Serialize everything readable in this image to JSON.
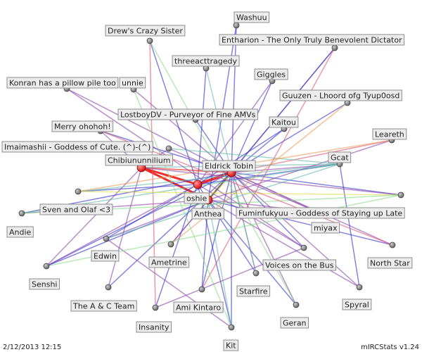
{
  "timestamp": "2/12/2013 12:15",
  "credit": "mIRCStats v1.24",
  "colors": {
    "node": "#666666",
    "hub": "#dd1111",
    "label_bg": "#ececec",
    "label_border": "#8c8c8c",
    "blue": "#3333cc",
    "purple": "#8844aa",
    "pink": "#dd5577",
    "green": "#88dd88",
    "teal": "#66bbaa",
    "orange": "#ee9955",
    "yellow": "#dddd55",
    "red": "#ee2222"
  },
  "nodes": [
    {
      "id": "washuu",
      "label": "Washuu"
    },
    {
      "id": "drew",
      "label": "Drew's Crazy Sister"
    },
    {
      "id": "entharion",
      "label": "Entharion - The Only Truly Benevolent Dictator"
    },
    {
      "id": "threeact",
      "label": "threeacttragedy"
    },
    {
      "id": "giggles",
      "label": "Giggles"
    },
    {
      "id": "konran",
      "label": "Konran has a pillow pile too"
    },
    {
      "id": "unnie",
      "label": "unnie"
    },
    {
      "id": "guuzen",
      "label": "Guuzen - Lhoord ofg Tyup0osd"
    },
    {
      "id": "lostboy",
      "label": "LostboyDV - Purveyor of Fine AMVs"
    },
    {
      "id": "kaitou",
      "label": "Kaitou"
    },
    {
      "id": "merry",
      "label": "Merry ohohoh!"
    },
    {
      "id": "leareth",
      "label": "Leareth"
    },
    {
      "id": "imaimashii",
      "label": "Imaimashii - Goddess of Cute. (^)-(^)"
    },
    {
      "id": "chibi",
      "label": "Chibiununnilium"
    },
    {
      "id": "gcat",
      "label": "Gcat"
    },
    {
      "id": "eldrick",
      "label": "Eldrick Tobin"
    },
    {
      "id": "oshie",
      "label": "oshie"
    },
    {
      "id": "anthea",
      "label": "Anthea"
    },
    {
      "id": "sven",
      "label": "Sven and Olaf <3"
    },
    {
      "id": "fuminfukyuu",
      "label": "Fuminfukyuu - Goddess of Staying up Late"
    },
    {
      "id": "andie",
      "label": "Andie"
    },
    {
      "id": "miyax",
      "label": "miyax"
    },
    {
      "id": "edwin",
      "label": "Edwin"
    },
    {
      "id": "northstar",
      "label": "North Star"
    },
    {
      "id": "ametrine",
      "label": "Ametrine"
    },
    {
      "id": "voices",
      "label": "Voices on the Bus"
    },
    {
      "id": "senshi",
      "label": "Senshi"
    },
    {
      "id": "starfire",
      "label": "Starfire"
    },
    {
      "id": "spyral",
      "label": "Spyral"
    },
    {
      "id": "ac",
      "label": "The A & C Team"
    },
    {
      "id": "amikintaro",
      "label": "Ami Kintaro"
    },
    {
      "id": "insanity",
      "label": "Insanity"
    },
    {
      "id": "geran",
      "label": "Geran"
    },
    {
      "id": "kit",
      "label": "Kit"
    }
  ],
  "edges": [
    {
      "source": "eldrick",
      "target": "oshie",
      "color": "red",
      "weight": 4
    },
    {
      "source": "chibi",
      "target": "oshie",
      "color": "red",
      "weight": 3
    },
    {
      "source": "anthea",
      "target": "eldrick",
      "color": "yellow",
      "weight": 4
    },
    {
      "source": "anthea",
      "target": "chibi",
      "color": "red",
      "weight": 3
    },
    {
      "source": "chibi",
      "target": "eldrick",
      "color": "red",
      "weight": 2
    },
    {
      "source": "eldrick",
      "target": "washuu",
      "color": "blue",
      "weight": 1.5
    },
    {
      "source": "eldrick",
      "target": "entharion",
      "color": "purple",
      "weight": 1.5
    },
    {
      "source": "eldrick",
      "target": "giggles",
      "color": "blue",
      "weight": 1.5
    },
    {
      "source": "eldrick",
      "target": "guuzen",
      "color": "blue",
      "weight": 1.5
    },
    {
      "source": "eldrick",
      "target": "kaitou",
      "color": "blue",
      "weight": 1.5
    },
    {
      "source": "eldrick",
      "target": "leareth",
      "color": "pink",
      "weight": 1.5
    },
    {
      "source": "eldrick",
      "target": "gcat",
      "color": "purple",
      "weight": 1.5
    },
    {
      "source": "eldrick",
      "target": "northstar",
      "color": "purple",
      "weight": 1.5
    },
    {
      "source": "eldrick",
      "target": "spyral",
      "color": "purple",
      "weight": 1.5
    },
    {
      "source": "eldrick",
      "target": "geran",
      "color": "purple",
      "weight": 1.5
    },
    {
      "source": "eldrick",
      "target": "kit",
      "color": "blue",
      "weight": 1.5
    },
    {
      "source": "eldrick",
      "target": "senshi",
      "color": "blue",
      "weight": 1.5
    },
    {
      "source": "eldrick",
      "target": "andie",
      "color": "blue",
      "weight": 1.5
    },
    {
      "source": "eldrick",
      "target": "voices",
      "color": "blue",
      "weight": 1.5
    },
    {
      "source": "eldrick",
      "target": "starfire",
      "color": "purple",
      "weight": 1.5
    },
    {
      "source": "eldrick",
      "target": "ac",
      "color": "blue",
      "weight": 1.5
    },
    {
      "source": "eldrick",
      "target": "konran",
      "color": "purple",
      "weight": 1.5
    },
    {
      "source": "eldrick",
      "target": "merry",
      "color": "blue",
      "weight": 1.5
    },
    {
      "source": "eldrick",
      "target": "unnie",
      "color": "purple",
      "weight": 1.5
    },
    {
      "source": "eldrick",
      "target": "lostboy",
      "color": "blue",
      "weight": 1.5
    },
    {
      "source": "eldrick",
      "target": "amikintaro",
      "color": "blue",
      "weight": 1.5
    },
    {
      "source": "eldrick",
      "target": "ametrine",
      "color": "purple",
      "weight": 1.5
    },
    {
      "source": "eldrick",
      "target": "fuminfukyuu",
      "color": "blue",
      "weight": 1.5
    },
    {
      "source": "eldrick",
      "target": "miyax",
      "color": "purple",
      "weight": 1.5
    },
    {
      "source": "oshie",
      "target": "threeact",
      "color": "blue",
      "weight": 1.5
    },
    {
      "source": "oshie",
      "target": "drew",
      "color": "blue",
      "weight": 1.5
    },
    {
      "source": "oshie",
      "target": "kit",
      "color": "blue",
      "weight": 1.5
    },
    {
      "source": "oshie",
      "target": "insanity",
      "color": "blue",
      "weight": 1.5
    },
    {
      "source": "oshie",
      "target": "edwin",
      "color": "blue",
      "weight": 1.5
    },
    {
      "source": "oshie",
      "target": "sven",
      "color": "blue",
      "weight": 1.5
    },
    {
      "source": "oshie",
      "target": "gcat",
      "color": "blue",
      "weight": 1.5
    },
    {
      "source": "oshie",
      "target": "voices",
      "color": "purple",
      "weight": 1.5
    },
    {
      "source": "oshie",
      "target": "starfire",
      "color": "blue",
      "weight": 1.5
    },
    {
      "source": "oshie",
      "target": "senshi",
      "color": "purple",
      "weight": 1.5
    },
    {
      "source": "oshie",
      "target": "giggles",
      "color": "purple",
      "weight": 1.5
    },
    {
      "source": "oshie",
      "target": "kaitou",
      "color": "blue",
      "weight": 1.5
    },
    {
      "source": "anthea",
      "target": "washuu",
      "color": "blue",
      "weight": 1.5
    },
    {
      "source": "anthea",
      "target": "miyax",
      "color": "purple",
      "weight": 1.5
    },
    {
      "source": "anthea",
      "target": "spyral",
      "color": "purple",
      "weight": 1.5
    },
    {
      "source": "anthea",
      "target": "geran",
      "color": "blue",
      "weight": 1.5
    },
    {
      "source": "anthea",
      "target": "amikintaro",
      "color": "blue",
      "weight": 1.5
    },
    {
      "source": "anthea",
      "target": "ametrine",
      "color": "purple",
      "weight": 1.5
    },
    {
      "source": "anthea",
      "target": "edwin",
      "color": "purple",
      "weight": 1.5
    },
    {
      "source": "anthea",
      "target": "senshi",
      "color": "blue",
      "weight": 1.5
    },
    {
      "source": "anthea",
      "target": "andie",
      "color": "purple",
      "weight": 1.5
    },
    {
      "source": "anthea",
      "target": "northstar",
      "color": "blue",
      "weight": 1.5
    },
    {
      "source": "anthea",
      "target": "leareth",
      "color": "purple",
      "weight": 1.5
    },
    {
      "source": "anthea",
      "target": "entharion",
      "color": "blue",
      "weight": 1.5
    },
    {
      "source": "anthea",
      "target": "kit",
      "color": "teal",
      "weight": 1.5
    },
    {
      "source": "chibi",
      "target": "imaimashii",
      "color": "purple",
      "weight": 1.5
    },
    {
      "source": "chibi",
      "target": "merry",
      "color": "purple",
      "weight": 1.5
    },
    {
      "source": "chibi",
      "target": "senshi",
      "color": "purple",
      "weight": 1.5
    },
    {
      "source": "chibi",
      "target": "ac",
      "color": "purple",
      "weight": 1.5
    },
    {
      "source": "chibi",
      "target": "gcat",
      "color": "teal",
      "weight": 1.5
    },
    {
      "source": "chibi",
      "target": "fuminfukyuu",
      "color": "purple",
      "weight": 1.5
    },
    {
      "source": "drew",
      "target": "insanity",
      "color": "pink",
      "weight": 1.5
    },
    {
      "source": "gcat",
      "target": "spyral",
      "color": "blue",
      "weight": 1.5
    },
    {
      "source": "gcat",
      "target": "sven",
      "color": "teal",
      "weight": 1.5
    },
    {
      "source": "gcat",
      "target": "andie",
      "color": "teal",
      "weight": 1.5
    },
    {
      "source": "gcat",
      "target": "edwin",
      "color": "teal",
      "weight": 1.5
    },
    {
      "source": "gcat",
      "target": "imaimashii",
      "color": "teal",
      "weight": 1.5
    },
    {
      "source": "leareth",
      "target": "sven",
      "color": "orange",
      "weight": 1.5
    },
    {
      "source": "fuminfukyuu",
      "target": "sven",
      "color": "yellow",
      "weight": 1.5
    },
    {
      "source": "entharion",
      "target": "amikintaro",
      "color": "pink",
      "weight": 1.5
    },
    {
      "source": "konran",
      "target": "voices",
      "color": "purple",
      "weight": 1.5
    },
    {
      "source": "guuzen",
      "target": "ametrine",
      "color": "orange",
      "weight": 1.5
    },
    {
      "source": "threeact",
      "target": "starfire",
      "color": "teal",
      "weight": 1.5
    },
    {
      "source": "unnie",
      "target": "kit",
      "color": "green",
      "weight": 1.5
    },
    {
      "source": "drew",
      "target": "geran",
      "color": "green",
      "weight": 1.5
    },
    {
      "source": "edwin",
      "target": "kit",
      "color": "purple",
      "weight": 1.5
    },
    {
      "source": "senshi",
      "target": "fuminfukyuu",
      "color": "green",
      "weight": 1.5
    },
    {
      "source": "andie",
      "target": "fuminfukyuu",
      "color": "green",
      "weight": 1.5
    },
    {
      "source": "merry",
      "target": "northstar",
      "color": "pink",
      "weight": 1.5
    },
    {
      "source": "imaimashii",
      "target": "miyax",
      "color": "purple",
      "weight": 1.5
    },
    {
      "source": "voices",
      "target": "insanity",
      "color": "purple",
      "weight": 1.5
    }
  ]
}
